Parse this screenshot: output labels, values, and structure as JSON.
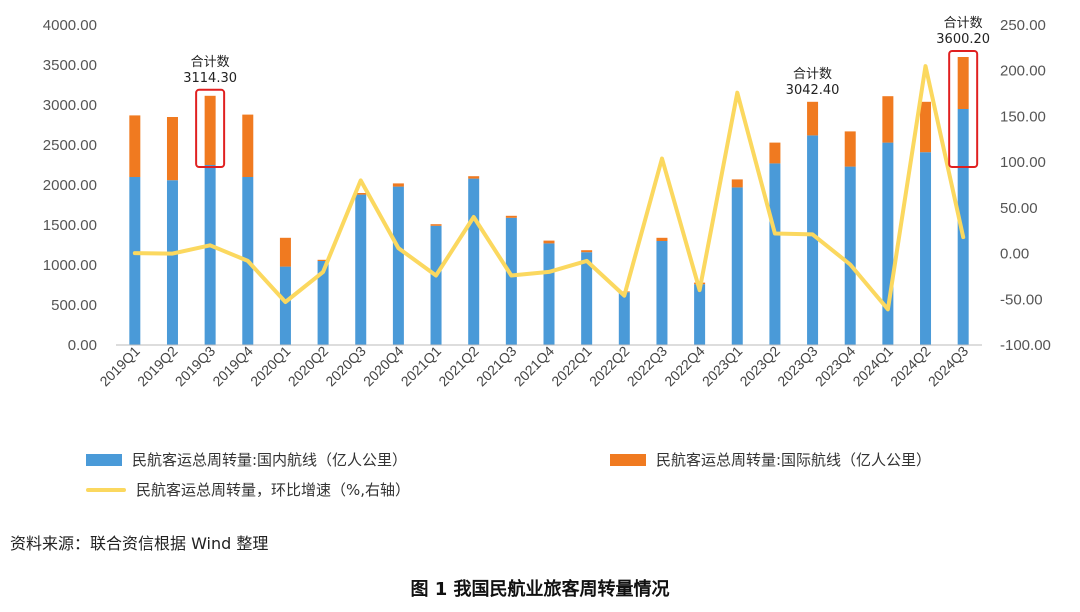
{
  "chart_data": {
    "type": "bar",
    "stacked": true,
    "categories": [
      "2019Q1",
      "2019Q2",
      "2019Q3",
      "2019Q4",
      "2020Q1",
      "2020Q2",
      "2020Q3",
      "2020Q4",
      "2021Q1",
      "2021Q2",
      "2021Q3",
      "2021Q4",
      "2022Q1",
      "2022Q2",
      "2022Q3",
      "2022Q4",
      "2023Q1",
      "2023Q2",
      "2023Q3",
      "2023Q4",
      "2024Q1",
      "2024Q2",
      "2024Q3"
    ],
    "series": [
      {
        "name": "民航客运总周转量:国内航线（亿人公里）",
        "axis": "left",
        "color": "#4a9ad8",
        "values": [
          2100,
          2060,
          2250,
          2100,
          980,
          1050,
          1880,
          1980,
          1490,
          2080,
          1590,
          1270,
          1160,
          660,
          1300,
          760,
          1970,
          2270,
          2620,
          2230,
          2530,
          2410,
          2950
        ]
      },
      {
        "name": "民航客运总周转量:国际航线（亿人公里）",
        "axis": "left",
        "color": "#f07a20",
        "values": [
          770,
          790,
          865,
          780,
          360,
          15,
          20,
          40,
          20,
          30,
          25,
          35,
          25,
          10,
          40,
          20,
          100,
          260,
          420,
          440,
          580,
          630,
          650
        ]
      },
      {
        "name": "民航客运总周转量，环比增速（%,右轴）",
        "axis": "right",
        "type": "line",
        "color": "#fbd85f",
        "values": [
          0.5,
          0,
          9,
          -8,
          -53,
          -20,
          80,
          6,
          -24,
          40,
          -24,
          -20,
          -8,
          -46,
          104,
          -40,
          176,
          22,
          21,
          -12,
          -61,
          205,
          18
        ]
      }
    ],
    "ylim": [
      0,
      4000
    ],
    "yticks": [
      "0.00",
      "500.00",
      "1000.00",
      "1500.00",
      "2000.00",
      "2500.00",
      "3000.00",
      "3500.00",
      "4000.00"
    ],
    "ylim_right": [
      -100,
      250
    ],
    "yticks_right": [
      "-100.00",
      "-50.00",
      "0.00",
      "50.00",
      "100.00",
      "150.00",
      "200.00",
      "250.00"
    ],
    "annotations": [
      {
        "category": "2019Q3",
        "label": "合计数",
        "value": "3114.30"
      },
      {
        "category": "2023Q3",
        "label": "合计数",
        "value": "3042.40"
      },
      {
        "category": "2024Q3",
        "label": "合计数",
        "value": "3600.20"
      }
    ],
    "highlight_boxes": [
      "2019Q3",
      "2024Q3"
    ],
    "highlight_color": "#e02020",
    "legend_position": "bottom",
    "grid": false
  },
  "source_note": "资料来源：联合资信根据 Wind 整理",
  "caption": "图 1    我国民航业旅客周转量情况"
}
